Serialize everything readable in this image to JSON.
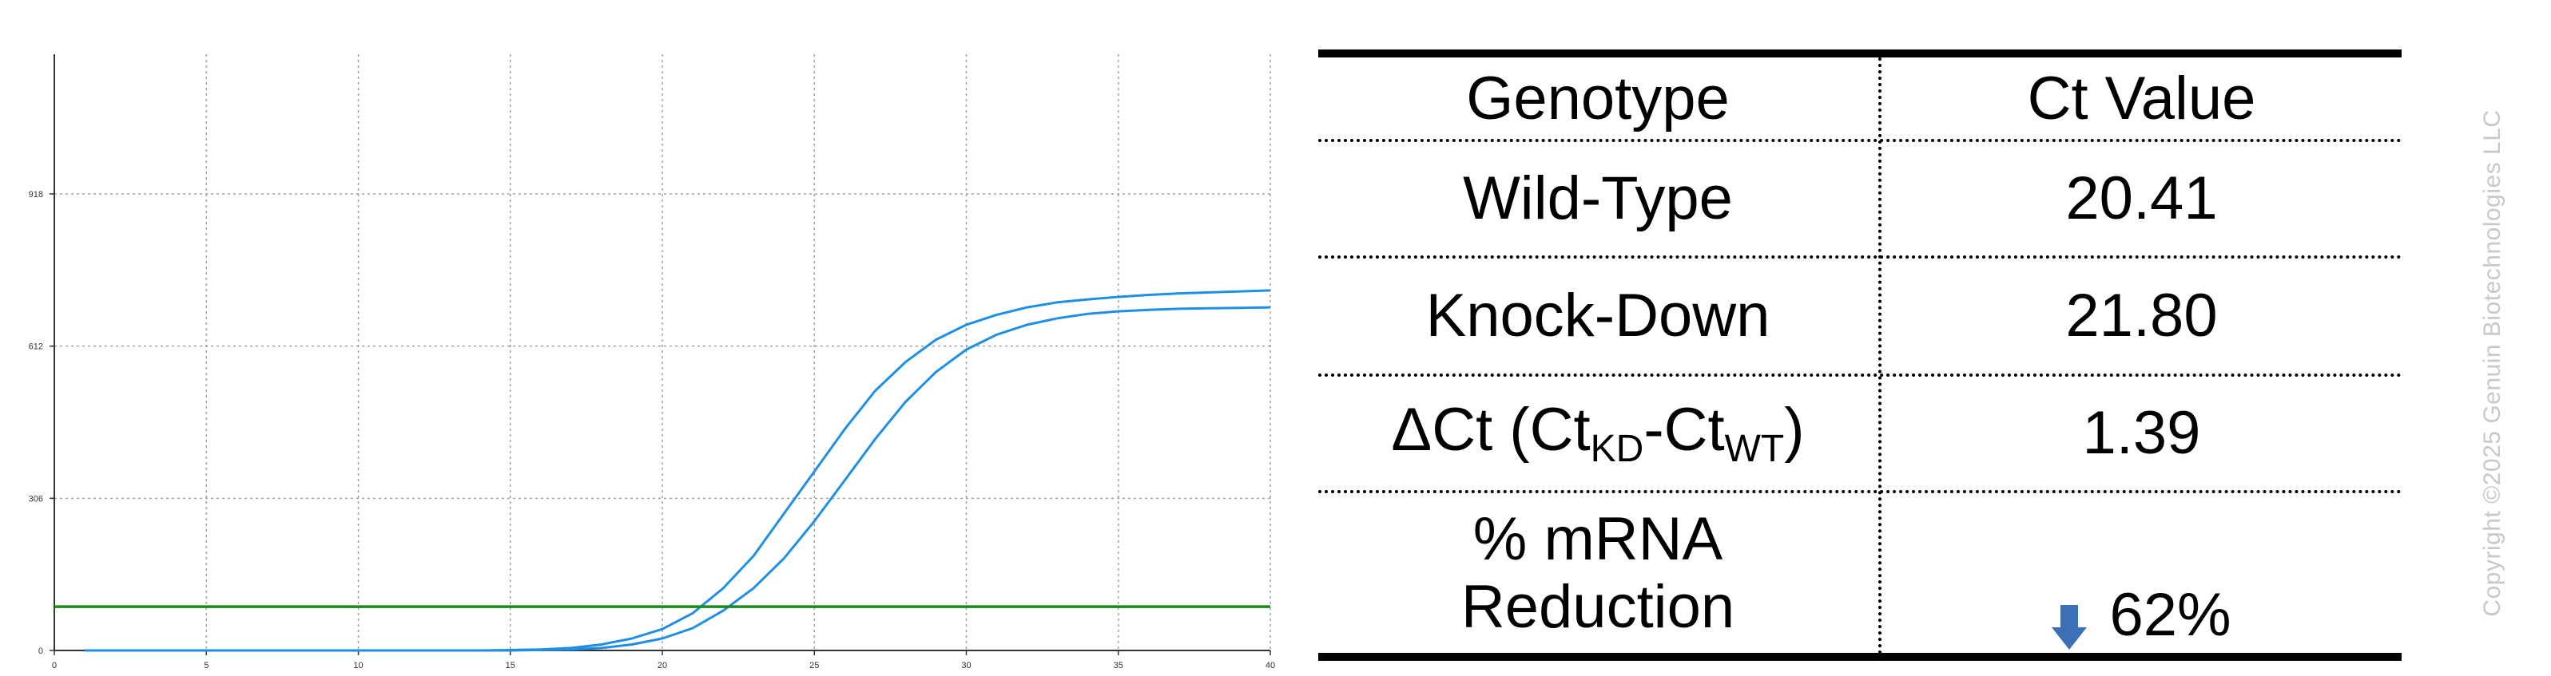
{
  "chart_data": {
    "type": "line",
    "title": "",
    "xlabel": "",
    "ylabel": "",
    "xlim": [
      0,
      40
    ],
    "ylim": [
      0,
      918
    ],
    "x_ticks": [
      0,
      5,
      10,
      15,
      20,
      25,
      30,
      35,
      40
    ],
    "y_ticks": [
      0,
      306,
      612,
      918
    ],
    "grid": true,
    "legend": "none",
    "series": [
      {
        "color": "#1f8fe5",
        "x": [
          1,
          14,
          16,
          17,
          18,
          19,
          20,
          21,
          22,
          23,
          24,
          25,
          26,
          27,
          28,
          29,
          30,
          31,
          32,
          33,
          34,
          35,
          36,
          37,
          38,
          39,
          40
        ],
        "y": [
          0,
          0,
          2,
          5,
          12,
          24,
          43,
          75,
          125,
          190,
          275,
          360,
          445,
          522,
          580,
          625,
          655,
          675,
          690,
          700,
          706,
          711,
          715,
          718,
          720,
          722,
          724
        ]
      },
      {
        "color": "#1f8fe5",
        "x": [
          1,
          15,
          17,
          18,
          19,
          20,
          21,
          22,
          23,
          24,
          25,
          26,
          27,
          28,
          29,
          30,
          31,
          32,
          33,
          34,
          35,
          36,
          37,
          38,
          39,
          40
        ],
        "y": [
          0,
          0,
          2,
          5,
          12,
          24,
          45,
          80,
          125,
          185,
          260,
          342,
          425,
          500,
          560,
          605,
          635,
          655,
          668,
          677,
          682,
          685,
          687,
          688,
          689,
          690
        ]
      }
    ],
    "threshold": {
      "color": "#1a8a1a",
      "y": 88
    }
  },
  "table": {
    "headers": [
      "Genotype",
      "Ct Value"
    ],
    "rows": [
      {
        "genotype": "Wild-Type",
        "ct": "20.41"
      },
      {
        "genotype": "Knock-Down",
        "ct": "21.80"
      }
    ],
    "delta": {
      "symbol": "ΔCt (Ct",
      "sub1": "KD",
      "mid": "-Ct",
      "sub2": "WT",
      "end": ")",
      "value": "1.39"
    },
    "reduction": {
      "line1": "% mRNA",
      "line2": "Reduction",
      "value": "62%",
      "arrow_icon": "down-arrow-icon",
      "arrow_color": "#3b6fb6"
    }
  },
  "copyright": "Copyright ©2025 Genuin Biotechnologies LLC"
}
